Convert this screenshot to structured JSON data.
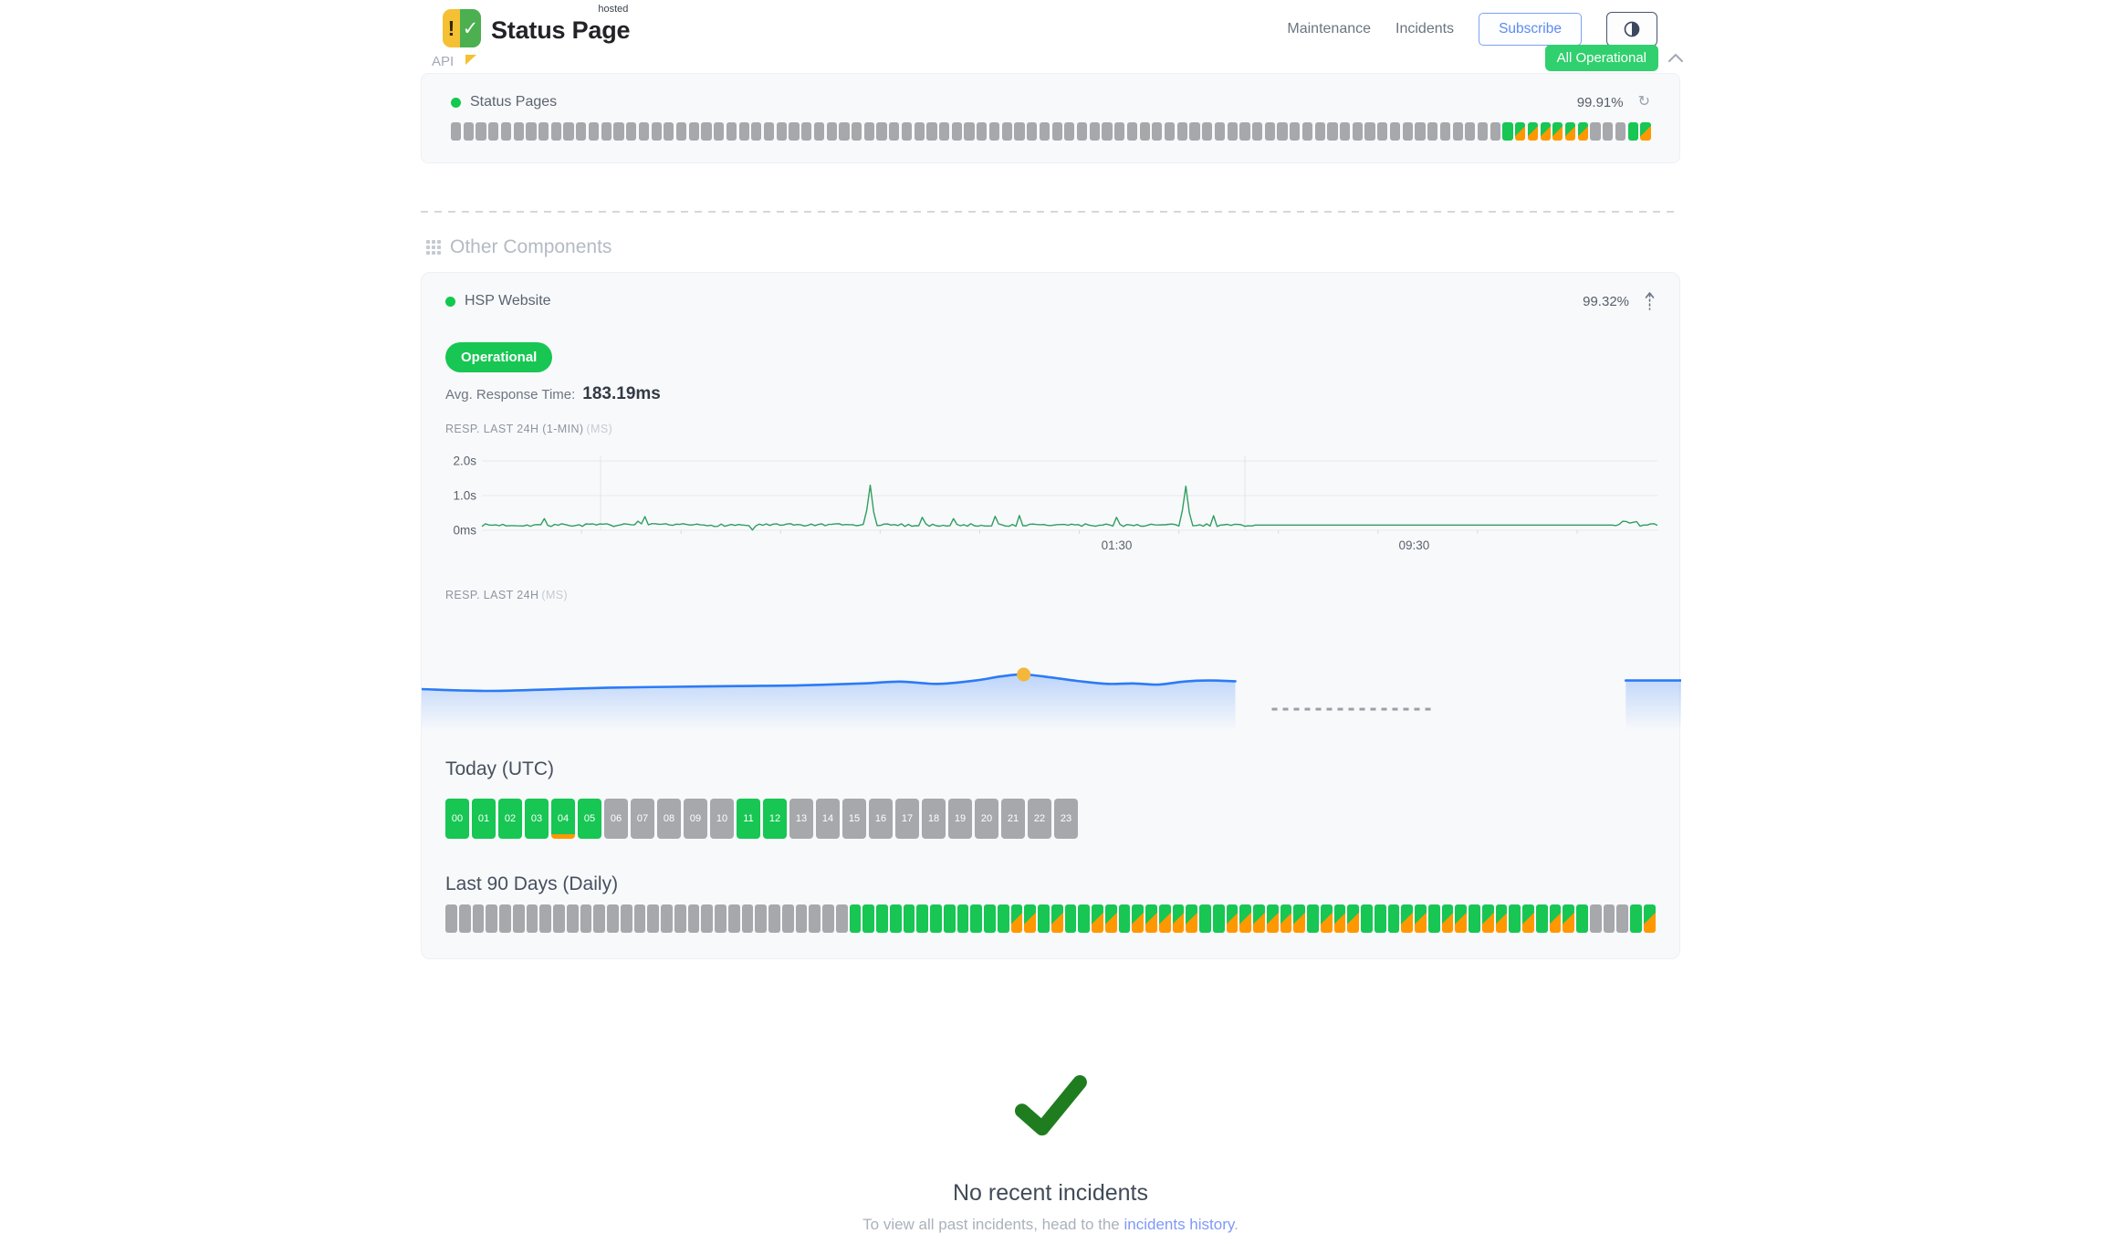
{
  "colors": {
    "operational_green": "#17c653",
    "partial_orange": "#ff9800",
    "nodata_gray": "#a7a8ac",
    "overall_badge_green": "#31d06e",
    "chart_line_green": "#2f9e5f",
    "chart_line_blue": "#2b7bf6",
    "marker_yellow": "#f4b63b",
    "link_blue": "#7e99f9",
    "subscribe_blue": "#5d8bf2",
    "check_green": "#1f7d1f"
  },
  "header": {
    "brand": "Status Page",
    "brand_superscript": "hosted",
    "logo_exclaim": "!",
    "logo_check": "✓",
    "nav": [
      {
        "label": "Maintenance"
      },
      {
        "label": "Incidents"
      }
    ],
    "subscribe_label": "Subscribe",
    "overall_status": "All Operational"
  },
  "api_group": {
    "title": "API",
    "component": {
      "name": "Status Pages",
      "uptime_pct": "99.91%",
      "bars_legend": {
        "n": "no-data",
        "u": "operational",
        "p": "partial-outage"
      },
      "bars": "nnnnnnnnnnnnnnnnnnnnnnnnnnnnnnnnnnnnnnnnnnnnnnnnnnnnnnnnnnnnnnnnnnnnnnnnnnnnnnnnnnnnuppppppnnnup"
    }
  },
  "other_components": {
    "section_title": "Other Components",
    "component": {
      "name": "HSP Website",
      "uptime_pct": "99.32%",
      "status_label": "Operational",
      "avg_response_label": "Avg. Response Time:",
      "avg_response_value": "183.19ms",
      "resp_1min_label": "RESP. LAST 24H (1-MIN)",
      "resp_1min_unit": "(MS)",
      "resp_24h_label": "RESP. LAST 24H",
      "resp_24h_unit": "(MS)",
      "today_title": "Today (UTC)",
      "hours": [
        {
          "label": "00",
          "state": "up"
        },
        {
          "label": "01",
          "state": "up"
        },
        {
          "label": "02",
          "state": "up"
        },
        {
          "label": "03",
          "state": "up"
        },
        {
          "label": "04",
          "state": "up-degraded"
        },
        {
          "label": "05",
          "state": "up"
        },
        {
          "label": "06",
          "state": "nodata"
        },
        {
          "label": "07",
          "state": "nodata"
        },
        {
          "label": "08",
          "state": "nodata"
        },
        {
          "label": "09",
          "state": "nodata"
        },
        {
          "label": "10",
          "state": "nodata"
        },
        {
          "label": "11",
          "state": "up"
        },
        {
          "label": "12",
          "state": "up"
        },
        {
          "label": "13",
          "state": "nodata"
        },
        {
          "label": "14",
          "state": "nodata"
        },
        {
          "label": "15",
          "state": "nodata"
        },
        {
          "label": "16",
          "state": "nodata"
        },
        {
          "label": "17",
          "state": "nodata"
        },
        {
          "label": "18",
          "state": "nodata"
        },
        {
          "label": "19",
          "state": "nodata"
        },
        {
          "label": "20",
          "state": "nodata"
        },
        {
          "label": "21",
          "state": "nodata"
        },
        {
          "label": "22",
          "state": "nodata"
        },
        {
          "label": "23",
          "state": "nodata"
        }
      ],
      "last90_title": "Last 90 Days (Daily)",
      "last90_bars": "nnnnnnnnnnnnnnnnnnnnnnnnnnnnnnuuuuuuuuuuuuppupuuppupppppuuppppppupppuuuppuppuppupuppunnnup"
    }
  },
  "incidents_section": {
    "title": "No recent incidents",
    "subtitle_prefix": "To view all past incidents, head to the ",
    "link_label": "incidents history",
    "subtitle_suffix": "."
  },
  "chart_data": [
    {
      "type": "line",
      "title": "RESP. LAST 24H (1-MIN) (MS)",
      "ylim_ms": [
        0,
        2000
      ],
      "y_ticks": [
        {
          "label": "2.0s",
          "ms": 2000
        },
        {
          "label": "1.0s",
          "ms": 1000
        },
        {
          "label": "0ms",
          "ms": 0
        }
      ],
      "x_ticks": [
        {
          "label": "01:30",
          "pos": 0.54
        },
        {
          "label": "09:30",
          "pos": 0.793
        }
      ],
      "vgrid_pos": [
        0.101,
        0.649
      ],
      "line_color": "#2f9e5f",
      "baseline_ms": 150,
      "noise_ms": 80,
      "spikes": [
        {
          "pos": 0.33,
          "ms": 1300
        },
        {
          "pos": 0.6,
          "ms": 1270
        }
      ],
      "dip": {
        "pos": 0.229,
        "ms": 8
      },
      "flat_segment": {
        "from": 0.655,
        "to": 0.962,
        "ms": 150
      },
      "grid": true,
      "legend": "none"
    },
    {
      "type": "area",
      "title": "RESP. LAST 24H (MS)",
      "line_color": "#2b7bf6",
      "marker": {
        "pos": 0.478,
        "ms": 215,
        "color": "#f4b63b"
      },
      "points_pos_ms": [
        [
          0,
          176
        ],
        [
          0.05,
          171
        ],
        [
          0.1,
          175
        ],
        [
          0.15,
          180
        ],
        [
          0.2,
          182
        ],
        [
          0.25,
          184
        ],
        [
          0.3,
          186
        ],
        [
          0.35,
          191
        ],
        [
          0.38,
          196
        ],
        [
          0.41,
          190
        ],
        [
          0.44,
          199
        ],
        [
          0.46,
          210
        ],
        [
          0.478,
          215
        ],
        [
          0.5,
          207
        ],
        [
          0.52,
          198
        ],
        [
          0.545,
          190
        ],
        [
          0.565,
          191
        ],
        [
          0.585,
          188
        ],
        [
          0.605,
          196
        ],
        [
          0.625,
          199
        ],
        [
          0.646,
          197
        ]
      ],
      "data_gap": {
        "from": 0.646,
        "to": 0.956
      },
      "dashed_span": {
        "from": 0.675,
        "to": 0.802
      },
      "tail_points_pos_ms": [
        [
          0.956,
          199
        ],
        [
          1,
          199
        ]
      ]
    }
  ]
}
